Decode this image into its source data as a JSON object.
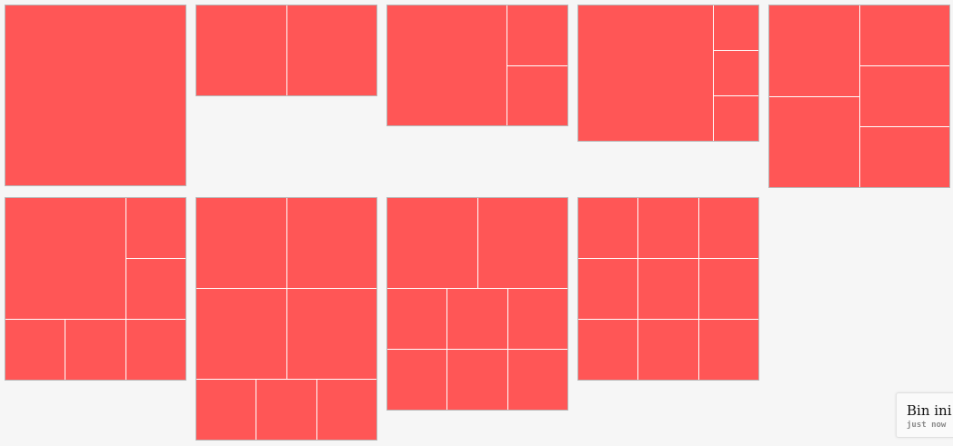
{
  "layouts": [
    {
      "name": "layout-1",
      "cells": 1
    },
    {
      "name": "layout-2",
      "cells": 2
    },
    {
      "name": "layout-3",
      "cells": 3
    },
    {
      "name": "layout-4",
      "cells": 4
    },
    {
      "name": "layout-5",
      "cells": 5
    },
    {
      "name": "layout-6",
      "cells": 6
    },
    {
      "name": "layout-7",
      "cells": 7
    },
    {
      "name": "layout-8",
      "cells": 8
    },
    {
      "name": "layout-9",
      "cells": 9
    }
  ],
  "colors": {
    "cell": "#ff5656",
    "background": "#f6f6f6",
    "border": "#b8b8b8"
  },
  "toast": {
    "title": "Bin ini",
    "time": "just now"
  }
}
